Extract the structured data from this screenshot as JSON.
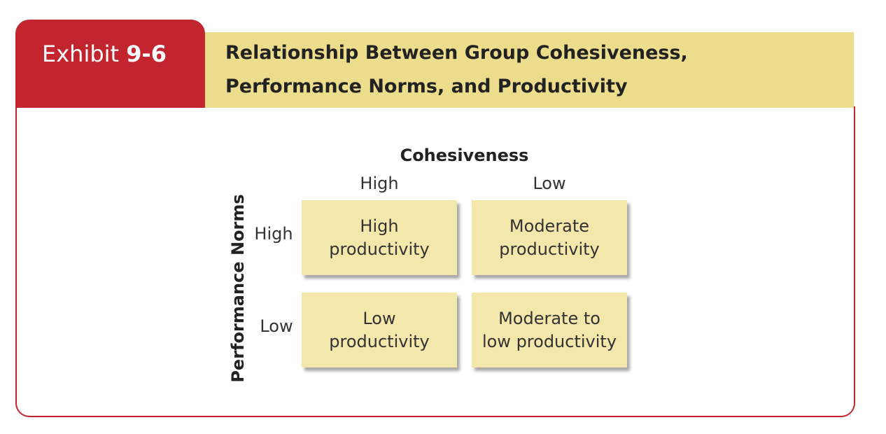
{
  "header": {
    "exhibit_word": "Exhibit",
    "exhibit_number": "9-6",
    "title_lines": [
      "Relationship Between Group Cohesiveness,",
      "Performance Norms, and Productivity"
    ]
  },
  "matrix": {
    "column_axis": "Cohesiveness",
    "column_labels": [
      "High",
      "Low"
    ],
    "row_axis": "Performance Norms",
    "row_labels": [
      "High",
      "Low"
    ],
    "cells": [
      [
        [
          "High",
          "productivity"
        ],
        [
          "Moderate",
          "productivity"
        ]
      ],
      [
        [
          "Low",
          "productivity"
        ],
        [
          "Moderate to",
          "low productivity"
        ]
      ]
    ]
  }
}
